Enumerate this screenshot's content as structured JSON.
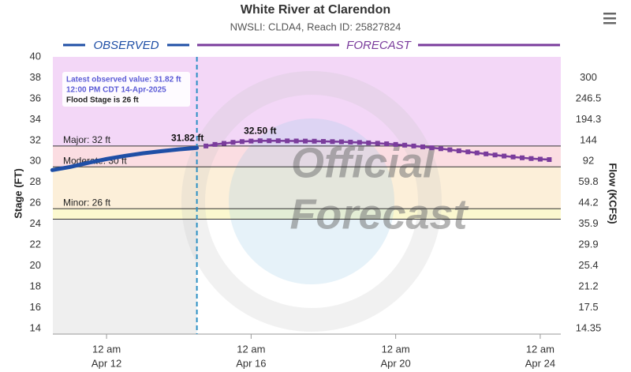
{
  "chart_data": {
    "type": "hydrograph",
    "title": "White River at Clarendon",
    "subtitle": "NWSLI: CLDA4, Reach ID: 25827824",
    "y_label": "Stage (FT)",
    "y2_label": "Flow (KCFS)",
    "observed_header": "OBSERVED",
    "forecast_header": "FORECAST",
    "watermark": [
      "Official",
      "Forecast"
    ],
    "annotation": [
      "Latest observed value: 31.82 ft",
      "12:00 PM CDT 14-Apr-2025",
      "Flood Stage is 26 ft"
    ],
    "latest_observed": "2025-04-14T12:00",
    "xlim": [
      "2025-04-10T12:20",
      "2025-04-24T13:40"
    ],
    "xticks": [
      {
        "value": "2025-04-12T00:00",
        "label": [
          "12 am",
          "Apr 12"
        ]
      },
      {
        "value": "2025-04-16T00:00",
        "label": [
          "12 am",
          "Apr 16"
        ]
      },
      {
        "value": "2025-04-20T00:00",
        "label": [
          "12 am",
          "Apr 20"
        ]
      },
      {
        "value": "2025-04-24T00:00",
        "label": [
          "12 am",
          "Apr 24"
        ]
      }
    ],
    "ylim": [
      14,
      40
    ],
    "yticks": [
      14,
      16,
      18,
      20,
      22,
      24,
      26,
      28,
      30,
      32,
      34,
      36,
      38,
      40
    ],
    "rating": {
      "stage": [
        38,
        36,
        34,
        32,
        30,
        28,
        26,
        24,
        22,
        20,
        18,
        16,
        14
      ],
      "flow": [
        300,
        246.5,
        194.3,
        144,
        92,
        59.8,
        44.2,
        35.9,
        29.9,
        25.4,
        21.2,
        17.5,
        14.35
      ]
    },
    "flood_levels": [
      {
        "label": "Major: 32 ft",
        "value": 32,
        "color": "#f3d7f7"
      },
      {
        "label": "Moderate: 30 ft",
        "value": 30,
        "color": "#fbdde2"
      },
      {
        "label": "Minor: 26 ft",
        "value": 26,
        "color": "#fcefd9"
      },
      {
        "value": 25,
        "color": "#fbf8cf"
      }
    ],
    "below_color": "#efefef",
    "series": [
      {
        "name": "Observed",
        "color": "#1f4fa6",
        "x": [
          "2025-04-10T12:00",
          "2025-04-11T00:00",
          "2025-04-11T12:00",
          "2025-04-12T00:00",
          "2025-04-12T12:00",
          "2025-04-13T00:00",
          "2025-04-13T12:00",
          "2025-04-14T00:00",
          "2025-04-14T12:00"
        ],
        "values": [
          29.7,
          30.0,
          30.4,
          30.75,
          31.05,
          31.3,
          31.5,
          31.68,
          31.82
        ],
        "value_labels": [
          null,
          null,
          null,
          null,
          null,
          null,
          null,
          null,
          "31.82 ft"
        ]
      },
      {
        "name": "Forecast",
        "color": "#7a3c9c",
        "x": [
          "2025-04-14T18:00",
          "2025-04-15T00:00",
          "2025-04-15T06:00",
          "2025-04-15T12:00",
          "2025-04-15T18:00",
          "2025-04-16T00:00",
          "2025-04-16T06:00",
          "2025-04-16T12:00",
          "2025-04-16T18:00",
          "2025-04-17T00:00",
          "2025-04-17T06:00",
          "2025-04-17T12:00",
          "2025-04-17T18:00",
          "2025-04-18T00:00",
          "2025-04-18T06:00",
          "2025-04-18T12:00",
          "2025-04-18T18:00",
          "2025-04-19T00:00",
          "2025-04-19T06:00",
          "2025-04-19T12:00",
          "2025-04-19T18:00",
          "2025-04-20T00:00",
          "2025-04-20T06:00",
          "2025-04-20T12:00",
          "2025-04-20T18:00",
          "2025-04-21T00:00",
          "2025-04-21T06:00",
          "2025-04-21T12:00",
          "2025-04-21T18:00",
          "2025-04-22T00:00",
          "2025-04-22T06:00",
          "2025-04-22T12:00",
          "2025-04-22T18:00",
          "2025-04-23T00:00",
          "2025-04-23T06:00",
          "2025-04-23T12:00",
          "2025-04-23T18:00",
          "2025-04-24T00:00",
          "2025-04-24T06:00"
        ],
        "values": [
          32.0,
          32.15,
          32.25,
          32.35,
          32.42,
          32.47,
          32.5,
          32.5,
          32.5,
          32.49,
          32.48,
          32.47,
          32.46,
          32.44,
          32.42,
          32.4,
          32.37,
          32.34,
          32.3,
          32.26,
          32.21,
          32.15,
          32.08,
          32.0,
          31.92,
          31.83,
          31.74,
          31.64,
          31.54,
          31.44,
          31.34,
          31.24,
          31.14,
          31.04,
          30.95,
          30.87,
          30.8,
          30.74,
          30.7
        ],
        "value_labels": [
          null,
          null,
          null,
          null,
          null,
          null,
          "32.50 ft",
          null,
          null,
          null,
          null,
          null,
          null,
          null,
          null,
          null,
          null,
          null,
          null,
          null,
          null,
          null,
          null,
          null,
          null,
          null,
          null,
          null,
          null,
          null,
          null,
          null,
          null,
          null,
          null,
          null,
          null,
          null,
          null
        ]
      }
    ]
  }
}
